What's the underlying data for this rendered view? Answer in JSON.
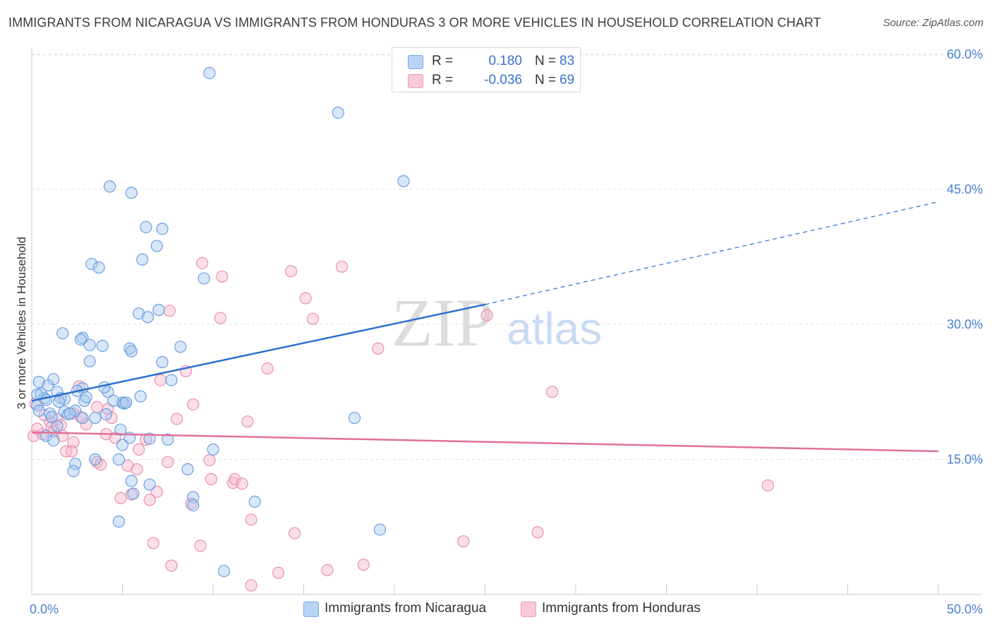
{
  "title": "IMMIGRANTS FROM NICARAGUA VS IMMIGRANTS FROM HONDURAS 3 OR MORE VEHICLES IN HOUSEHOLD CORRELATION CHART",
  "source": "Source: ZipAtlas.com",
  "watermark": {
    "zip": "ZIP",
    "atlas": "atlas"
  },
  "colors": {
    "nicaragua_fill": "#a8c8f0",
    "nicaragua_stroke": "#6a9fe0",
    "nicaragua_line": "#2a6fd0",
    "honduras_fill": "#f6b8cc",
    "honduras_stroke": "#ea8fae",
    "honduras_line": "#e0709a",
    "tick_text": "#4a7fd0",
    "grid": "#e2e2e2"
  },
  "legend": {
    "rows": [
      {
        "r_label": "R =",
        "r_value": "0.180",
        "n_label": "N =",
        "n_value": "83"
      },
      {
        "r_label": "R =",
        "r_value": "-0.036",
        "n_label": "N =",
        "n_value": "69"
      }
    ]
  },
  "bottom_legend": {
    "nicaragua": "Immigrants from Nicaragua",
    "honduras": "Immigrants from Honduras"
  },
  "chart_data": {
    "type": "scatter",
    "title": "IMMIGRANTS FROM NICARAGUA VS IMMIGRANTS FROM HONDURAS 3 OR MORE VEHICLES IN HOUSEHOLD CORRELATION CHART",
    "xlabel": "",
    "ylabel": "3 or more Vehicles in Household",
    "xlim": [
      0,
      50
    ],
    "ylim": [
      0,
      65
    ],
    "x_tick_labels": [
      "0.0%",
      "50.0%"
    ],
    "y_ticks": [
      15,
      30,
      45,
      60
    ],
    "y_tick_labels": [
      "15.0%",
      "30.0%",
      "45.0%",
      "60.0%"
    ],
    "grid": "horizontal dashed",
    "legend_position": "top-center",
    "series": [
      {
        "name": "Immigrants from Nicaragua",
        "points": [
          [
            9.8,
            57.9
          ],
          [
            16.9,
            53.5
          ],
          [
            20.5,
            45.9
          ],
          [
            4.3,
            45.3
          ],
          [
            5.5,
            44.6
          ],
          [
            6.3,
            40.8
          ],
          [
            7.2,
            40.6
          ],
          [
            6.9,
            38.7
          ],
          [
            6.1,
            37.2
          ],
          [
            3.3,
            36.7
          ],
          [
            3.7,
            36.3
          ],
          [
            9.5,
            35.1
          ],
          [
            7.0,
            31.6
          ],
          [
            5.9,
            31.2
          ],
          [
            6.4,
            30.8
          ],
          [
            1.7,
            29.0
          ],
          [
            2.8,
            28.5
          ],
          [
            2.7,
            28.3
          ],
          [
            3.2,
            27.7
          ],
          [
            3.9,
            27.6
          ],
          [
            8.2,
            27.5
          ],
          [
            5.4,
            27.3
          ],
          [
            5.5,
            27.0
          ],
          [
            3.2,
            25.9
          ],
          [
            7.2,
            25.8
          ],
          [
            0.4,
            23.6
          ],
          [
            1.2,
            23.9
          ],
          [
            7.7,
            23.8
          ],
          [
            2.8,
            22.9
          ],
          [
            0.5,
            22.3
          ],
          [
            1.4,
            22.5
          ],
          [
            2.5,
            22.6
          ],
          [
            4.2,
            22.5
          ],
          [
            0.7,
            21.8
          ],
          [
            0.8,
            21.6
          ],
          [
            1.6,
            21.8
          ],
          [
            1.8,
            21.7
          ],
          [
            2.9,
            21.5
          ],
          [
            5.0,
            21.3
          ],
          [
            5.1,
            21.2
          ],
          [
            5.2,
            21.3
          ],
          [
            4.5,
            21.5
          ],
          [
            0.3,
            21.0
          ],
          [
            0.4,
            20.4
          ],
          [
            1.0,
            20.1
          ],
          [
            1.8,
            20.3
          ],
          [
            2.0,
            20.0
          ],
          [
            2.4,
            20.4
          ],
          [
            4.1,
            20.0
          ],
          [
            1.1,
            19.7
          ],
          [
            2.8,
            19.6
          ],
          [
            3.5,
            19.6
          ],
          [
            1.4,
            18.7
          ],
          [
            4.9,
            18.3
          ],
          [
            0.8,
            17.6
          ],
          [
            1.2,
            17.1
          ],
          [
            5.4,
            17.4
          ],
          [
            5.0,
            16.6
          ],
          [
            7.5,
            17.2
          ],
          [
            6.5,
            17.3
          ],
          [
            10.0,
            16.1
          ],
          [
            17.8,
            19.6
          ],
          [
            3.5,
            15.0
          ],
          [
            4.8,
            15.0
          ],
          [
            2.4,
            14.5
          ],
          [
            8.6,
            13.9
          ],
          [
            2.3,
            13.7
          ],
          [
            5.5,
            12.6
          ],
          [
            6.5,
            12.2
          ],
          [
            8.9,
            10.8
          ],
          [
            8.9,
            9.9
          ],
          [
            5.6,
            11.2
          ],
          [
            12.3,
            10.3
          ],
          [
            4.8,
            8.1
          ],
          [
            19.2,
            7.2
          ],
          [
            10.6,
            2.6
          ],
          [
            0.3,
            22.2
          ],
          [
            1.5,
            21.4
          ],
          [
            6.0,
            22.0
          ],
          [
            0.9,
            23.2
          ],
          [
            2.1,
            20.1
          ],
          [
            3.0,
            21.9
          ],
          [
            4.0,
            23.0
          ]
        ]
      },
      {
        "name": "Immigrants from Honduras",
        "points": [
          [
            9.4,
            36.8
          ],
          [
            10.5,
            35.3
          ],
          [
            14.3,
            35.9
          ],
          [
            17.1,
            36.4
          ],
          [
            15.1,
            32.9
          ],
          [
            7.6,
            31.5
          ],
          [
            10.4,
            30.7
          ],
          [
            15.5,
            30.6
          ],
          [
            25.1,
            31.0
          ],
          [
            19.1,
            27.3
          ],
          [
            13.0,
            25.1
          ],
          [
            8.5,
            24.8
          ],
          [
            7.1,
            23.8
          ],
          [
            2.6,
            23.1
          ],
          [
            28.7,
            22.5
          ],
          [
            0.2,
            21.2
          ],
          [
            0.7,
            19.9
          ],
          [
            1.0,
            19.2
          ],
          [
            1.4,
            19.5
          ],
          [
            1.6,
            18.8
          ],
          [
            2.3,
            20.1
          ],
          [
            2.7,
            19.7
          ],
          [
            3.0,
            18.9
          ],
          [
            3.6,
            20.8
          ],
          [
            4.2,
            20.6
          ],
          [
            4.4,
            19.6
          ],
          [
            8.9,
            21.1
          ],
          [
            8.0,
            19.5
          ],
          [
            11.9,
            19.2
          ],
          [
            0.1,
            17.6
          ],
          [
            0.6,
            17.8
          ],
          [
            1.1,
            18.6
          ],
          [
            1.7,
            17.6
          ],
          [
            2.3,
            16.9
          ],
          [
            4.1,
            17.8
          ],
          [
            4.6,
            17.4
          ],
          [
            6.3,
            17.2
          ],
          [
            1.9,
            15.9
          ],
          [
            2.2,
            15.9
          ],
          [
            5.9,
            16.1
          ],
          [
            3.6,
            14.7
          ],
          [
            3.8,
            14.4
          ],
          [
            5.3,
            14.3
          ],
          [
            5.8,
            13.9
          ],
          [
            7.5,
            14.7
          ],
          [
            9.8,
            14.9
          ],
          [
            9.9,
            12.8
          ],
          [
            11.1,
            12.4
          ],
          [
            11.2,
            12.8
          ],
          [
            11.6,
            12.3
          ],
          [
            6.9,
            11.4
          ],
          [
            5.5,
            11.1
          ],
          [
            4.9,
            10.7
          ],
          [
            6.5,
            10.5
          ],
          [
            8.8,
            10.1
          ],
          [
            40.6,
            12.1
          ],
          [
            12.1,
            8.3
          ],
          [
            14.5,
            6.8
          ],
          [
            27.9,
            6.9
          ],
          [
            6.7,
            5.7
          ],
          [
            9.3,
            5.4
          ],
          [
            23.8,
            5.9
          ],
          [
            7.7,
            3.2
          ],
          [
            18.3,
            3.3
          ],
          [
            13.6,
            2.4
          ],
          [
            16.3,
            2.7
          ],
          [
            12.1,
            1.0
          ],
          [
            0.3,
            18.4
          ],
          [
            1.2,
            18.1
          ]
        ]
      }
    ],
    "trendlines": [
      {
        "series": "Immigrants from Nicaragua",
        "x": [
          0,
          25
        ],
        "y": [
          21.5,
          32.2
        ],
        "extended_dashed_to": [
          50,
          43.6
        ]
      },
      {
        "series": "Immigrants from Honduras",
        "x": [
          0,
          50
        ],
        "y": [
          18.0,
          15.9
        ]
      }
    ]
  }
}
